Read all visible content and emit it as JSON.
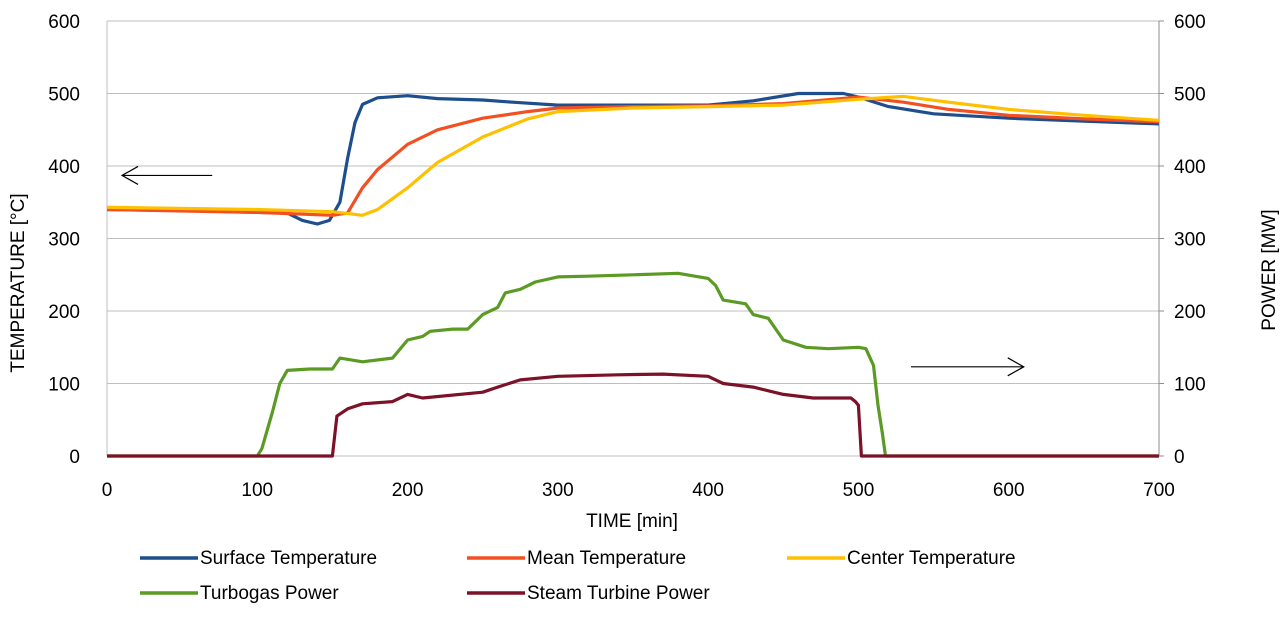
{
  "chart_data": {
    "type": "line",
    "title": "",
    "xlabel": "TIME [min]",
    "ylabel_left": "TEMPERATURE [°C]",
    "ylabel_right": "POWER [MW]",
    "xlim": [
      0,
      700
    ],
    "ylim_left": [
      0,
      600
    ],
    "ylim_right": [
      0,
      600
    ],
    "xticks": [
      "0",
      "100",
      "200",
      "300",
      "400",
      "500",
      "600",
      "700"
    ],
    "yticks_left": [
      "0",
      "100",
      "200",
      "300",
      "400",
      "500",
      "600"
    ],
    "yticks_right": [
      "0",
      "100",
      "200",
      "300",
      "400",
      "500",
      "600"
    ],
    "grid": "horizontal",
    "legend_position": "bottom",
    "series": [
      {
        "name": "Surface Temperature",
        "axis": "left",
        "color": "#1f4e8c",
        "points": [
          [
            0,
            340
          ],
          [
            60,
            338
          ],
          [
            120,
            335
          ],
          [
            130,
            325
          ],
          [
            140,
            320
          ],
          [
            148,
            325
          ],
          [
            155,
            350
          ],
          [
            160,
            410
          ],
          [
            165,
            460
          ],
          [
            170,
            485
          ],
          [
            180,
            494
          ],
          [
            200,
            497
          ],
          [
            220,
            493
          ],
          [
            250,
            491
          ],
          [
            270,
            488
          ],
          [
            300,
            484
          ],
          [
            400,
            484
          ],
          [
            430,
            490
          ],
          [
            460,
            500
          ],
          [
            490,
            500
          ],
          [
            500,
            495
          ],
          [
            520,
            482
          ],
          [
            550,
            472
          ],
          [
            600,
            466
          ],
          [
            650,
            462
          ],
          [
            700,
            458
          ]
        ]
      },
      {
        "name": "Mean Temperature",
        "axis": "left",
        "color": "#f25022",
        "points": [
          [
            0,
            340
          ],
          [
            100,
            336
          ],
          [
            150,
            332
          ],
          [
            160,
            335
          ],
          [
            170,
            370
          ],
          [
            180,
            395
          ],
          [
            200,
            430
          ],
          [
            220,
            450
          ],
          [
            250,
            466
          ],
          [
            280,
            475
          ],
          [
            300,
            480
          ],
          [
            350,
            482
          ],
          [
            400,
            483
          ],
          [
            450,
            486
          ],
          [
            500,
            495
          ],
          [
            530,
            488
          ],
          [
            560,
            478
          ],
          [
            600,
            470
          ],
          [
            650,
            465
          ],
          [
            700,
            461
          ]
        ]
      },
      {
        "name": "Center Temperature",
        "axis": "left",
        "color": "#ffc000",
        "points": [
          [
            0,
            343
          ],
          [
            100,
            340
          ],
          [
            150,
            337
          ],
          [
            170,
            332
          ],
          [
            180,
            340
          ],
          [
            200,
            370
          ],
          [
            220,
            405
          ],
          [
            250,
            440
          ],
          [
            280,
            465
          ],
          [
            300,
            475
          ],
          [
            350,
            480
          ],
          [
            400,
            482
          ],
          [
            450,
            484
          ],
          [
            500,
            492
          ],
          [
            530,
            496
          ],
          [
            560,
            488
          ],
          [
            600,
            478
          ],
          [
            650,
            470
          ],
          [
            700,
            463
          ]
        ]
      },
      {
        "name": "Turbogas Power",
        "axis": "right",
        "color": "#5b9a24",
        "points": [
          [
            0,
            0
          ],
          [
            100,
            0
          ],
          [
            103,
            10
          ],
          [
            110,
            60
          ],
          [
            115,
            100
          ],
          [
            120,
            118
          ],
          [
            135,
            120
          ],
          [
            150,
            120
          ],
          [
            155,
            135
          ],
          [
            170,
            130
          ],
          [
            190,
            135
          ],
          [
            200,
            160
          ],
          [
            210,
            165
          ],
          [
            215,
            172
          ],
          [
            230,
            175
          ],
          [
            240,
            175
          ],
          [
            250,
            195
          ],
          [
            260,
            205
          ],
          [
            265,
            225
          ],
          [
            275,
            230
          ],
          [
            285,
            240
          ],
          [
            300,
            247
          ],
          [
            320,
            248
          ],
          [
            350,
            250
          ],
          [
            380,
            252
          ],
          [
            400,
            245
          ],
          [
            405,
            235
          ],
          [
            410,
            215
          ],
          [
            425,
            210
          ],
          [
            430,
            195
          ],
          [
            440,
            190
          ],
          [
            450,
            160
          ],
          [
            465,
            150
          ],
          [
            480,
            148
          ],
          [
            500,
            150
          ],
          [
            505,
            148
          ],
          [
            510,
            125
          ],
          [
            513,
            70
          ],
          [
            516,
            30
          ],
          [
            518,
            0
          ],
          [
            700,
            0
          ]
        ]
      },
      {
        "name": "Steam Turbine Power",
        "axis": "right",
        "color": "#7b1228",
        "points": [
          [
            0,
            0
          ],
          [
            150,
            0
          ],
          [
            153,
            55
          ],
          [
            160,
            65
          ],
          [
            170,
            72
          ],
          [
            190,
            75
          ],
          [
            200,
            85
          ],
          [
            210,
            80
          ],
          [
            250,
            88
          ],
          [
            260,
            95
          ],
          [
            275,
            105
          ],
          [
            300,
            110
          ],
          [
            340,
            112
          ],
          [
            370,
            113
          ],
          [
            400,
            110
          ],
          [
            410,
            100
          ],
          [
            430,
            95
          ],
          [
            450,
            85
          ],
          [
            470,
            80
          ],
          [
            480,
            80
          ],
          [
            495,
            80
          ],
          [
            498,
            75
          ],
          [
            500,
            70
          ],
          [
            502,
            0
          ],
          [
            700,
            0
          ]
        ]
      }
    ],
    "annotations": [
      {
        "type": "arrow",
        "direction": "left",
        "points_to": "left-axis",
        "x": [
          10,
          70
        ],
        "y": 387,
        "axis": "left"
      },
      {
        "type": "arrow",
        "direction": "right",
        "points_to": "right-axis",
        "x": [
          535,
          610
        ],
        "y": 123,
        "axis": "right"
      }
    ]
  }
}
